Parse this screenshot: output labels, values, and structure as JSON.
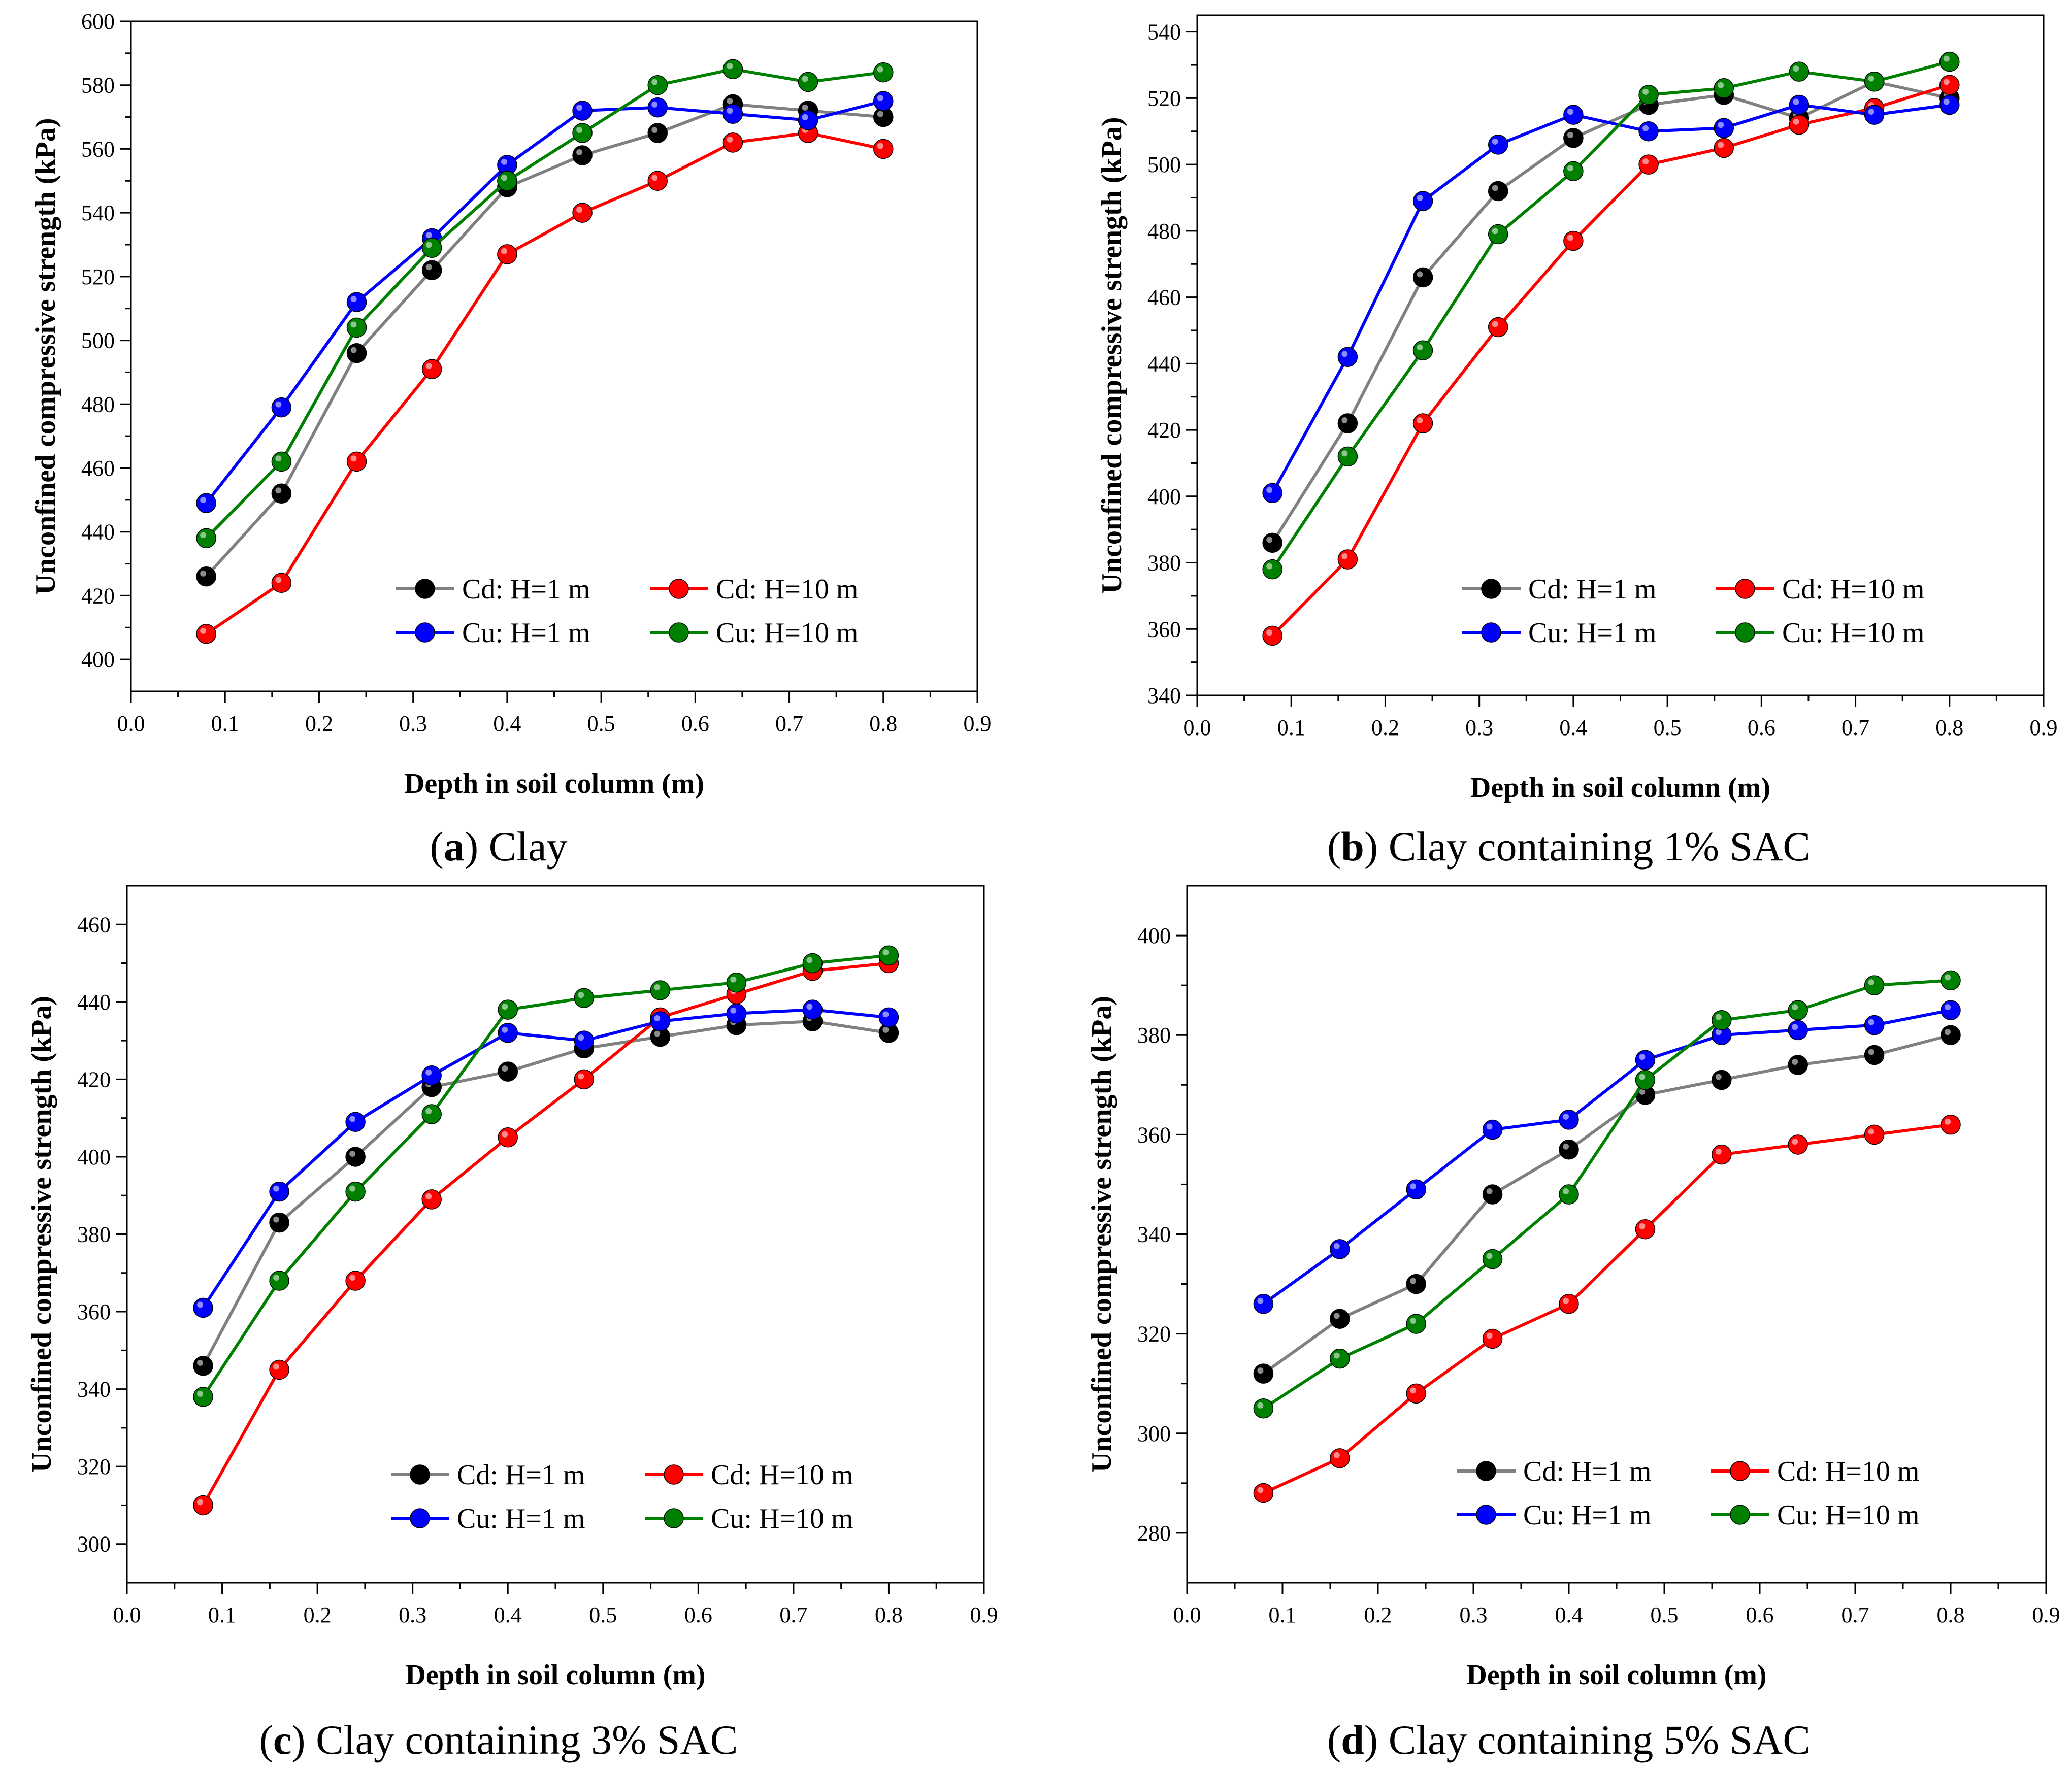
{
  "figure": {
    "series_names": [
      "Cd: H=1 m",
      "Cd: H=10 m",
      "Cu: H=1 m",
      "Cu: H=10 m"
    ],
    "series_colors": {
      "line_black": "#808080",
      "marker_black": "#000000",
      "red": "#ff0000",
      "blue": "#0000ff",
      "green": "#008000"
    }
  },
  "chart_data": [
    {
      "type": "line",
      "caption_letter": "a",
      "caption_text": " Clay",
      "xlabel": "Depth in soil column (m)",
      "ylabel": "Unconfined compressive strength (kPa)",
      "xlim": [
        0.0,
        0.9
      ],
      "ylim": [
        390,
        600
      ],
      "xticks": [
        "0.0",
        "0.1",
        "0.2",
        "0.3",
        "0.4",
        "0.5",
        "0.6",
        "0.7",
        "0.8",
        "0.9"
      ],
      "yticks": [
        "400",
        "420",
        "440",
        "460",
        "480",
        "500",
        "520",
        "540",
        "560",
        "580",
        "600"
      ],
      "x": [
        0.08,
        0.16,
        0.24,
        0.32,
        0.4,
        0.48,
        0.56,
        0.64,
        0.72,
        0.8
      ],
      "series": [
        {
          "name": "Cd: H=1 m",
          "values": [
            426,
            452,
            496,
            522,
            548,
            558,
            565,
            574,
            572,
            570
          ]
        },
        {
          "name": "Cd: H=10 m",
          "values": [
            408,
            424,
            462,
            491,
            527,
            540,
            550,
            562,
            565,
            560
          ]
        },
        {
          "name": "Cu: H=1 m",
          "values": [
            449,
            479,
            512,
            532,
            555,
            572,
            573,
            571,
            569,
            575
          ]
        },
        {
          "name": "Cu: H=10 m",
          "values": [
            438,
            462,
            504,
            529,
            550,
            565,
            580,
            585,
            581,
            584
          ]
        }
      ]
    },
    {
      "type": "line",
      "caption_letter": "b",
      "caption_text": " Clay containing 1% SAC",
      "xlabel": "Depth in soil column (m)",
      "ylabel": "Unconfined compressive strength (kPa)",
      "xlim": [
        0.0,
        0.9
      ],
      "ylim": [
        340,
        545
      ],
      "xticks": [
        "0.0",
        "0.1",
        "0.2",
        "0.3",
        "0.4",
        "0.5",
        "0.6",
        "0.7",
        "0.8",
        "0.9"
      ],
      "yticks": [
        "340",
        "360",
        "380",
        "400",
        "420",
        "440",
        "460",
        "480",
        "500",
        "520",
        "540"
      ],
      "x": [
        0.08,
        0.16,
        0.24,
        0.32,
        0.4,
        0.48,
        0.56,
        0.64,
        0.72,
        0.8
      ],
      "series": [
        {
          "name": "Cd: H=1 m",
          "values": [
            386,
            422,
            466,
            492,
            508,
            518,
            521,
            514,
            525,
            520
          ]
        },
        {
          "name": "Cd: H=10 m",
          "values": [
            358,
            381,
            422,
            451,
            477,
            500,
            505,
            512,
            517,
            524
          ]
        },
        {
          "name": "Cu: H=1 m",
          "values": [
            401,
            442,
            489,
            506,
            515,
            510,
            511,
            518,
            515,
            518
          ]
        },
        {
          "name": "Cu: H=10 m",
          "values": [
            378,
            412,
            444,
            479,
            498,
            521,
            523,
            528,
            525,
            531
          ]
        }
      ]
    },
    {
      "type": "line",
      "caption_letter": "c",
      "caption_text": " Clay containing 3% SAC",
      "xlabel": "Depth in soil column (m)",
      "ylabel": "Unconfined compressive strength (kPa)",
      "xlim": [
        0.0,
        0.9
      ],
      "ylim": [
        290,
        470
      ],
      "xticks": [
        "0.0",
        "0.1",
        "0.2",
        "0.3",
        "0.4",
        "0.5",
        "0.6",
        "0.7",
        "0.8",
        "0.9"
      ],
      "yticks": [
        "300",
        "320",
        "340",
        "360",
        "380",
        "400",
        "420",
        "440",
        "460"
      ],
      "x": [
        0.08,
        0.16,
        0.24,
        0.32,
        0.4,
        0.48,
        0.56,
        0.64,
        0.72,
        0.8
      ],
      "series": [
        {
          "name": "Cd: H=1 m",
          "values": [
            346,
            383,
            400,
            418,
            422,
            428,
            431,
            434,
            435,
            432
          ]
        },
        {
          "name": "Cd: H=10 m",
          "values": [
            310,
            345,
            368,
            389,
            405,
            420,
            436,
            442,
            448,
            450
          ]
        },
        {
          "name": "Cu: H=1 m",
          "values": [
            361,
            391,
            409,
            421,
            432,
            430,
            435,
            437,
            438,
            436
          ]
        },
        {
          "name": "Cu: H=10 m",
          "values": [
            338,
            368,
            391,
            411,
            438,
            441,
            443,
            445,
            450,
            452
          ]
        }
      ]
    },
    {
      "type": "line",
      "caption_letter": "d",
      "caption_text": " Clay containing 5% SAC",
      "xlabel": "Depth in soil column (m)",
      "ylabel": "Unconfined compressive strength (kPa)",
      "xlim": [
        0.0,
        0.9
      ],
      "ylim": [
        270,
        410
      ],
      "xticks": [
        "0.0",
        "0.1",
        "0.2",
        "0.3",
        "0.4",
        "0.5",
        "0.6",
        "0.7",
        "0.8",
        "0.9"
      ],
      "yticks": [
        "280",
        "300",
        "320",
        "340",
        "360",
        "380",
        "400"
      ],
      "x": [
        0.08,
        0.16,
        0.24,
        0.32,
        0.4,
        0.48,
        0.56,
        0.64,
        0.72,
        0.8
      ],
      "series": [
        {
          "name": "Cd: H=1 m",
          "values": [
            312,
            323,
            330,
            348,
            357,
            368,
            371,
            374,
            376,
            380
          ]
        },
        {
          "name": "Cd: H=10 m",
          "values": [
            288,
            295,
            308,
            319,
            326,
            341,
            356,
            358,
            360,
            362
          ]
        },
        {
          "name": "Cu: H=1 m",
          "values": [
            326,
            337,
            349,
            361,
            363,
            375,
            380,
            381,
            382,
            385
          ]
        },
        {
          "name": "Cu: H=10 m",
          "values": [
            305,
            315,
            322,
            335,
            348,
            371,
            383,
            385,
            390,
            391
          ]
        }
      ]
    }
  ]
}
